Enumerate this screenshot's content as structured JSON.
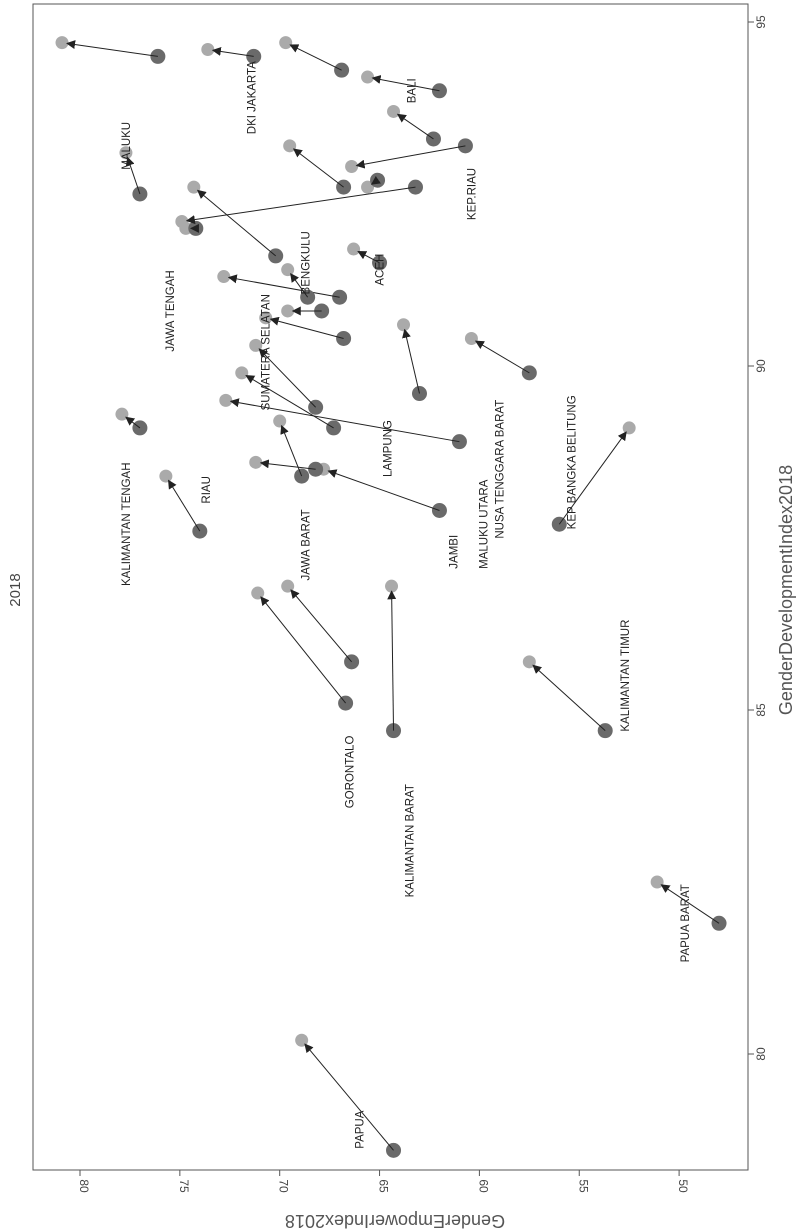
{
  "chart_data": {
    "type": "scatter",
    "title": "2018",
    "xlabel": "GenderDevelopmentIndex2018",
    "ylabel": "GenderEmpowerIndex2018",
    "xlim": [
      78.2,
      95.5
    ],
    "ylim": [
      46.5,
      83.2
    ],
    "x_ticks": [
      "80",
      "85",
      "90",
      "95"
    ],
    "y_ticks": [
      "50",
      "55",
      "60",
      "65",
      "70",
      "75",
      "80"
    ],
    "grid": false,
    "legend": "none",
    "colors": {
      "start": "#6a6a6a",
      "end": "#aaaaaa",
      "arrow": "#222222",
      "leader": "#999999"
    },
    "points": [
      {
        "x0": 78.6,
        "y0": 64.3,
        "x1": 80.2,
        "y1": 68.9
      },
      {
        "x0": 81.9,
        "y0": 48.0,
        "x1": 82.5,
        "y1": 51.1
      },
      {
        "x0": 84.7,
        "y0": 53.7,
        "x1": 85.7,
        "y1": 57.5
      },
      {
        "x0": 84.7,
        "y0": 64.3,
        "x1": 86.8,
        "y1": 64.4
      },
      {
        "x0": 85.1,
        "y0": 66.7,
        "x1": 86.7,
        "y1": 71.1
      },
      {
        "x0": 85.7,
        "y0": 66.4,
        "x1": 86.8,
        "y1": 69.6
      },
      {
        "x0": 87.7,
        "y0": 56.0,
        "x1": 89.1,
        "y1": 52.5
      },
      {
        "x0": 87.6,
        "y0": 74.0,
        "x1": 88.4,
        "y1": 75.7
      },
      {
        "x0": 87.9,
        "y0": 62.0,
        "x1": 88.5,
        "y1": 67.8
      },
      {
        "x0": 88.5,
        "y0": 68.2,
        "x1": 88.6,
        "y1": 71.2
      },
      {
        "x0": 88.4,
        "y0": 68.9,
        "x1": 89.2,
        "y1": 70.0
      },
      {
        "x0": 88.9,
        "y0": 61.0,
        "x1": 89.5,
        "y1": 72.7
      },
      {
        "x0": 89.1,
        "y0": 77.0,
        "x1": 89.3,
        "y1": 77.9
      },
      {
        "x0": 89.1,
        "y0": 67.3,
        "x1": 89.9,
        "y1": 71.9
      },
      {
        "x0": 89.4,
        "y0": 68.2,
        "x1": 90.3,
        "y1": 71.2
      },
      {
        "x0": 89.6,
        "y0": 63.0,
        "x1": 90.6,
        "y1": 63.8
      },
      {
        "x0": 89.9,
        "y0": 57.5,
        "x1": 90.4,
        "y1": 60.4
      },
      {
        "x0": 90.4,
        "y0": 66.8,
        "x1": 90.7,
        "y1": 70.7
      },
      {
        "x0": 90.8,
        "y0": 67.9,
        "x1": 90.8,
        "y1": 69.6
      },
      {
        "x0": 91.0,
        "y0": 67.0,
        "x1": 91.3,
        "y1": 72.8
      },
      {
        "x0": 91.0,
        "y0": 68.6,
        "x1": 91.4,
        "y1": 69.6
      },
      {
        "x0": 91.5,
        "y0": 65.0,
        "x1": 91.7,
        "y1": 66.3
      },
      {
        "x0": 91.6,
        "y0": 70.2,
        "x1": 92.6,
        "y1": 74.3
      },
      {
        "x0": 92.0,
        "y0": 74.2,
        "x1": 92.0,
        "y1": 74.7
      },
      {
        "x0": 92.6,
        "y0": 63.2,
        "x1": 92.1,
        "y1": 74.9
      },
      {
        "x0": 92.6,
        "y0": 66.8,
        "x1": 93.2,
        "y1": 69.5
      },
      {
        "x0": 92.7,
        "y0": 65.1,
        "x1": 92.6,
        "y1": 65.6
      },
      {
        "x0": 92.5,
        "y0": 77.0,
        "x1": 93.1,
        "y1": 77.7
      },
      {
        "x0": 93.2,
        "y0": 60.7,
        "x1": 92.9,
        "y1": 66.4
      },
      {
        "x0": 93.3,
        "y0": 62.3,
        "x1": 93.7,
        "y1": 64.3
      },
      {
        "x0": 94.0,
        "y0": 62.0,
        "x1": 94.2,
        "y1": 65.6
      },
      {
        "x0": 94.3,
        "y0": 66.9,
        "x1": 94.7,
        "y1": 69.7
      },
      {
        "x0": 94.5,
        "y0": 71.3,
        "x1": 94.6,
        "y1": 73.6
      },
      {
        "x0": 94.5,
        "y0": 76.1,
        "x1": 94.7,
        "y1": 80.9
      }
    ],
    "labels": [
      {
        "text": "PAPUA",
        "x": 78.9,
        "y": 65.8
      },
      {
        "text": "PAPUA BARAT",
        "x": 81.9,
        "y": 49.5
      },
      {
        "text": "KALIMANTAN TIMUR",
        "x": 85.5,
        "y": 52.5
      },
      {
        "text": "KALIMANTAN BARAT",
        "x": 83.1,
        "y": 63.3
      },
      {
        "text": "GORONTALO",
        "x": 84.1,
        "y": 66.3
      },
      {
        "text": "KEP BANGKA BELITUNG",
        "x": 88.6,
        "y": 55.2
      },
      {
        "text": "RIAU",
        "x": 88.2,
        "y": 73.5
      },
      {
        "text": "JAMBI",
        "x": 87.3,
        "y": 61.1
      },
      {
        "text": "MALUKU UTARA",
        "x": 87.7,
        "y": 59.6
      },
      {
        "text": "JAWA BARAT",
        "x": 87.4,
        "y": 68.5
      },
      {
        "text": "KALIMANTAN TENGAH",
        "x": 87.7,
        "y": 77.5
      },
      {
        "text": "NUSA TENGGARA BARAT",
        "x": 88.5,
        "y": 58.8
      },
      {
        "text": "LAMPUNG",
        "x": 88.8,
        "y": 64.4
      },
      {
        "text": "SUMATERA SELATAN",
        "x": 90.2,
        "y": 70.5
      },
      {
        "text": "JAWA TENGAH",
        "x": 90.8,
        "y": 75.3
      },
      {
        "text": "BENGKULU",
        "x": 91.5,
        "y": 68.5
      },
      {
        "text": "ACEH",
        "x": 91.4,
        "y": 64.8
      },
      {
        "text": "KEP.RIAU",
        "x": 92.5,
        "y": 60.2
      },
      {
        "text": "MALUKU",
        "x": 93.2,
        "y": 77.5
      },
      {
        "text": "BALI",
        "x": 94.0,
        "y": 63.2
      },
      {
        "text": "DKI JAKARTA",
        "x": 93.9,
        "y": 71.2
      }
    ]
  }
}
